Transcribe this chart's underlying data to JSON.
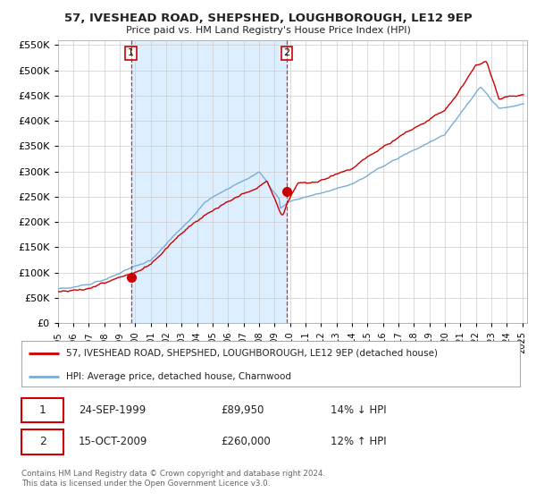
{
  "title": "57, IVESHEAD ROAD, SHEPSHED, LOUGHBOROUGH, LE12 9EP",
  "subtitle": "Price paid vs. HM Land Registry's House Price Index (HPI)",
  "legend_line1": "57, IVESHEAD ROAD, SHEPSHED, LOUGHBOROUGH, LE12 9EP (detached house)",
  "legend_line2": "HPI: Average price, detached house, Charnwood",
  "annotation1_date": "24-SEP-1999",
  "annotation1_price": "£89,950",
  "annotation1_hpi": "14% ↓ HPI",
  "annotation2_date": "15-OCT-2009",
  "annotation2_price": "£260,000",
  "annotation2_hpi": "12% ↑ HPI",
  "footer": "Contains HM Land Registry data © Crown copyright and database right 2024.\nThis data is licensed under the Open Government Licence v3.0.",
  "hpi_color": "#7aadd4",
  "price_color": "#cc0000",
  "vline_color": "#cc0000",
  "shade_color": "#ddeeff",
  "point1_year": 1999.73,
  "point1_price": 89950,
  "point2_year": 2009.79,
  "point2_price": 260000,
  "ylim_min": 0,
  "ylim_max": 560000,
  "xlim_min": 1995.0,
  "xlim_max": 2025.3,
  "background_color": "#ffffff",
  "grid_color": "#cccccc"
}
